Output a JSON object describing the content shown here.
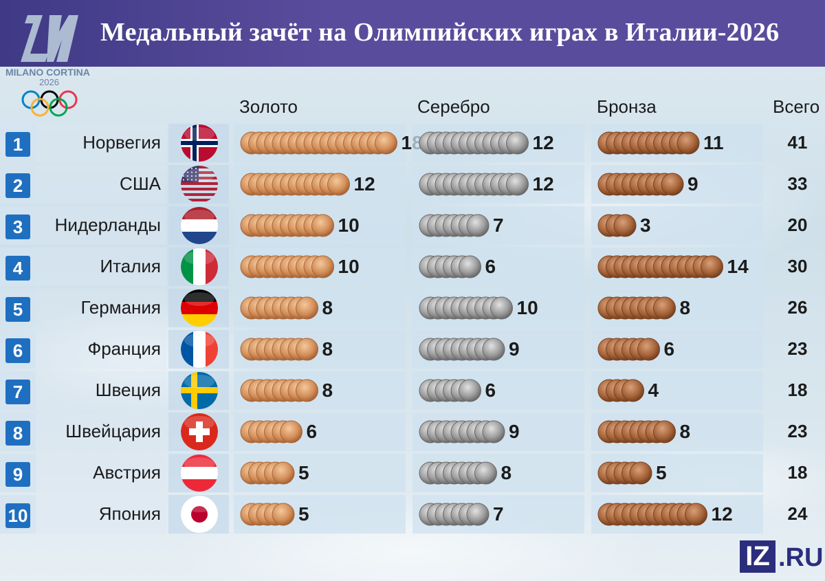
{
  "header": {
    "title": "Медальный зачёт на Олимпийских играх в Италии-2026",
    "logo_text": "MILANO CORTINA",
    "logo_year": "2026"
  },
  "columns": {
    "gold": "Золото",
    "silver": "Серебро",
    "bronze": "Бронза",
    "total": "Всего"
  },
  "chart_data": {
    "type": "table",
    "title": "Медальный зачёт на Олимпийских играх в Италии-2026",
    "rows": [
      {
        "rank": "1",
        "country": "Норвегия",
        "flag": "norway",
        "gold": 18,
        "silver": 12,
        "bronze": 11,
        "total": 41
      },
      {
        "rank": "2",
        "country": "США",
        "flag": "usa",
        "gold": 12,
        "silver": 12,
        "bronze": 9,
        "total": 33
      },
      {
        "rank": "3",
        "country": "Нидерланды",
        "flag": "netherlands",
        "gold": 10,
        "silver": 7,
        "bronze": 3,
        "total": 20
      },
      {
        "rank": "4",
        "country": "Италия",
        "flag": "italy",
        "gold": 10,
        "silver": 6,
        "bronze": 14,
        "total": 30
      },
      {
        "rank": "5",
        "country": "Германия",
        "flag": "germany",
        "gold": 8,
        "silver": 10,
        "bronze": 8,
        "total": 26
      },
      {
        "rank": "6",
        "country": "Франция",
        "flag": "france",
        "gold": 8,
        "silver": 9,
        "bronze": 6,
        "total": 23
      },
      {
        "rank": "7",
        "country": "Швеция",
        "flag": "sweden",
        "gold": 8,
        "silver": 6,
        "bronze": 4,
        "total": 18
      },
      {
        "rank": "8",
        "country": "Швейцария",
        "flag": "switzerland",
        "gold": 6,
        "silver": 9,
        "bronze": 8,
        "total": 23
      },
      {
        "rank": "9",
        "country": "Австрия",
        "flag": "austria",
        "gold": 5,
        "silver": 8,
        "bronze": 5,
        "total": 18
      },
      {
        "rank": "10",
        "country": "Япония",
        "flag": "japan",
        "gold": 5,
        "silver": 7,
        "bronze": 12,
        "total": 24
      }
    ]
  },
  "colors": {
    "header": "#4a4391",
    "rank_badge": "#1f6fc0",
    "gold_coin": "#d08a55",
    "silver_coin": "#9a9a9a",
    "bronze_coin": "#a8653c",
    "brand": "#2b2e7d"
  },
  "footer": {
    "brand_box": "IZ",
    "brand_suffix": ".RU"
  }
}
